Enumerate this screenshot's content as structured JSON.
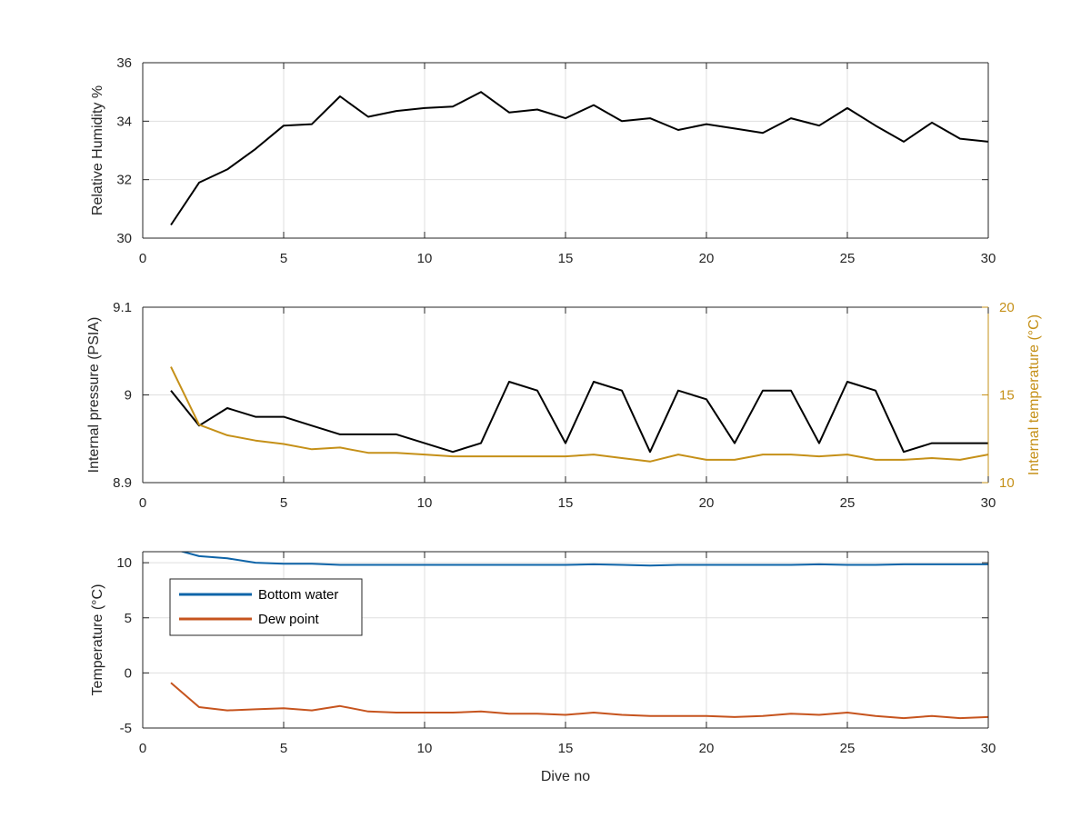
{
  "chart_data": [
    {
      "type": "line",
      "ylabel": "Relative Humidity %",
      "xlim": [
        0,
        30
      ],
      "ylim": [
        30,
        36
      ],
      "xticks": [
        0,
        5,
        10,
        15,
        20,
        25,
        30
      ],
      "yticks": [
        30,
        32,
        34,
        36
      ],
      "grid": true,
      "series": [
        {
          "color": "#000000",
          "x": [
            1,
            2,
            3,
            4,
            5,
            6,
            7,
            8,
            9,
            10,
            11,
            12,
            13,
            14,
            15,
            16,
            17,
            18,
            19,
            20,
            21,
            22,
            23,
            24,
            25,
            26,
            27,
            28,
            29,
            30
          ],
          "values": [
            30.45,
            31.9,
            32.35,
            33.05,
            33.85,
            33.9,
            34.85,
            34.15,
            34.35,
            34.45,
            34.5,
            35.0,
            34.3,
            34.4,
            34.1,
            34.55,
            34.0,
            34.1,
            33.7,
            33.9,
            33.75,
            33.6,
            34.1,
            33.85,
            34.45,
            33.85,
            33.3,
            33.95,
            33.4,
            33.3
          ]
        }
      ]
    },
    {
      "type": "line",
      "ylabel": "Internal pressure (PSIA)",
      "y2label": "Internal temperature (°C)",
      "xlim": [
        0,
        30
      ],
      "ylim": [
        8.9,
        9.1
      ],
      "y2lim": [
        10,
        20
      ],
      "xticks": [
        0,
        5,
        10,
        15,
        20,
        25,
        30
      ],
      "yticks": [
        8.9,
        9,
        9.1
      ],
      "y2ticks": [
        10,
        15,
        20
      ],
      "grid": true,
      "series": [
        {
          "axis": "left",
          "color": "#000000",
          "x": [
            1,
            2,
            3,
            4,
            5,
            6,
            7,
            8,
            9,
            10,
            11,
            12,
            13,
            14,
            15,
            16,
            17,
            18,
            19,
            20,
            21,
            22,
            23,
            24,
            25,
            26,
            27,
            28,
            29,
            30
          ],
          "values": [
            9.005,
            8.965,
            8.985,
            8.975,
            8.975,
            8.965,
            8.955,
            8.955,
            8.955,
            8.945,
            8.935,
            8.945,
            9.015,
            9.005,
            8.945,
            9.015,
            9.005,
            8.935,
            9.005,
            8.995,
            8.945,
            9.005,
            9.005,
            8.945,
            9.015,
            9.005,
            8.935,
            8.945,
            8.945,
            8.945
          ]
        },
        {
          "axis": "right",
          "color": "#c59018",
          "x": [
            1,
            2,
            3,
            4,
            5,
            6,
            7,
            8,
            9,
            10,
            11,
            12,
            13,
            14,
            15,
            16,
            17,
            18,
            19,
            20,
            21,
            22,
            23,
            24,
            25,
            26,
            27,
            28,
            29,
            30
          ],
          "values": [
            16.6,
            13.3,
            12.7,
            12.4,
            12.2,
            11.9,
            12.0,
            11.7,
            11.7,
            11.6,
            11.5,
            11.5,
            11.5,
            11.5,
            11.5,
            11.6,
            11.4,
            11.2,
            11.6,
            11.3,
            11.3,
            11.6,
            11.6,
            11.5,
            11.6,
            11.3,
            11.3,
            11.4,
            11.3,
            11.6
          ]
        }
      ]
    },
    {
      "type": "line",
      "xlabel": "Dive no",
      "ylabel": "Temperature (°C)",
      "xlim": [
        0,
        30
      ],
      "ylim": [
        -5,
        11
      ],
      "xticks": [
        0,
        5,
        10,
        15,
        20,
        25,
        30
      ],
      "yticks": [
        -5,
        0,
        5,
        10
      ],
      "grid": true,
      "legend": "top-left",
      "series": [
        {
          "name": "Bottom water",
          "color": "#0e64a8",
          "x": [
            1,
            2,
            3,
            4,
            5,
            6,
            7,
            8,
            9,
            10,
            11,
            12,
            13,
            14,
            15,
            16,
            17,
            18,
            19,
            20,
            21,
            22,
            23,
            24,
            25,
            26,
            27,
            28,
            29,
            30
          ],
          "values": [
            11.3,
            10.6,
            10.4,
            10.0,
            9.9,
            9.9,
            9.8,
            9.8,
            9.8,
            9.8,
            9.8,
            9.8,
            9.8,
            9.8,
            9.8,
            9.85,
            9.8,
            9.75,
            9.8,
            9.8,
            9.8,
            9.8,
            9.8,
            9.85,
            9.8,
            9.8,
            9.85,
            9.85,
            9.85,
            9.85
          ]
        },
        {
          "name": "Dew point",
          "color": "#c6541e",
          "x": [
            1,
            2,
            3,
            4,
            5,
            6,
            7,
            8,
            9,
            10,
            11,
            12,
            13,
            14,
            15,
            16,
            17,
            18,
            19,
            20,
            21,
            22,
            23,
            24,
            25,
            26,
            27,
            28,
            29,
            30
          ],
          "values": [
            -0.9,
            -3.1,
            -3.4,
            -3.3,
            -3.2,
            -3.4,
            -3.0,
            -3.5,
            -3.6,
            -3.6,
            -3.6,
            -3.5,
            -3.7,
            -3.7,
            -3.8,
            -3.6,
            -3.8,
            -3.9,
            -3.9,
            -3.9,
            -4.0,
            -3.9,
            -3.7,
            -3.8,
            -3.6,
            -3.9,
            -4.1,
            -3.9,
            -4.1,
            -4.0
          ]
        }
      ]
    }
  ]
}
